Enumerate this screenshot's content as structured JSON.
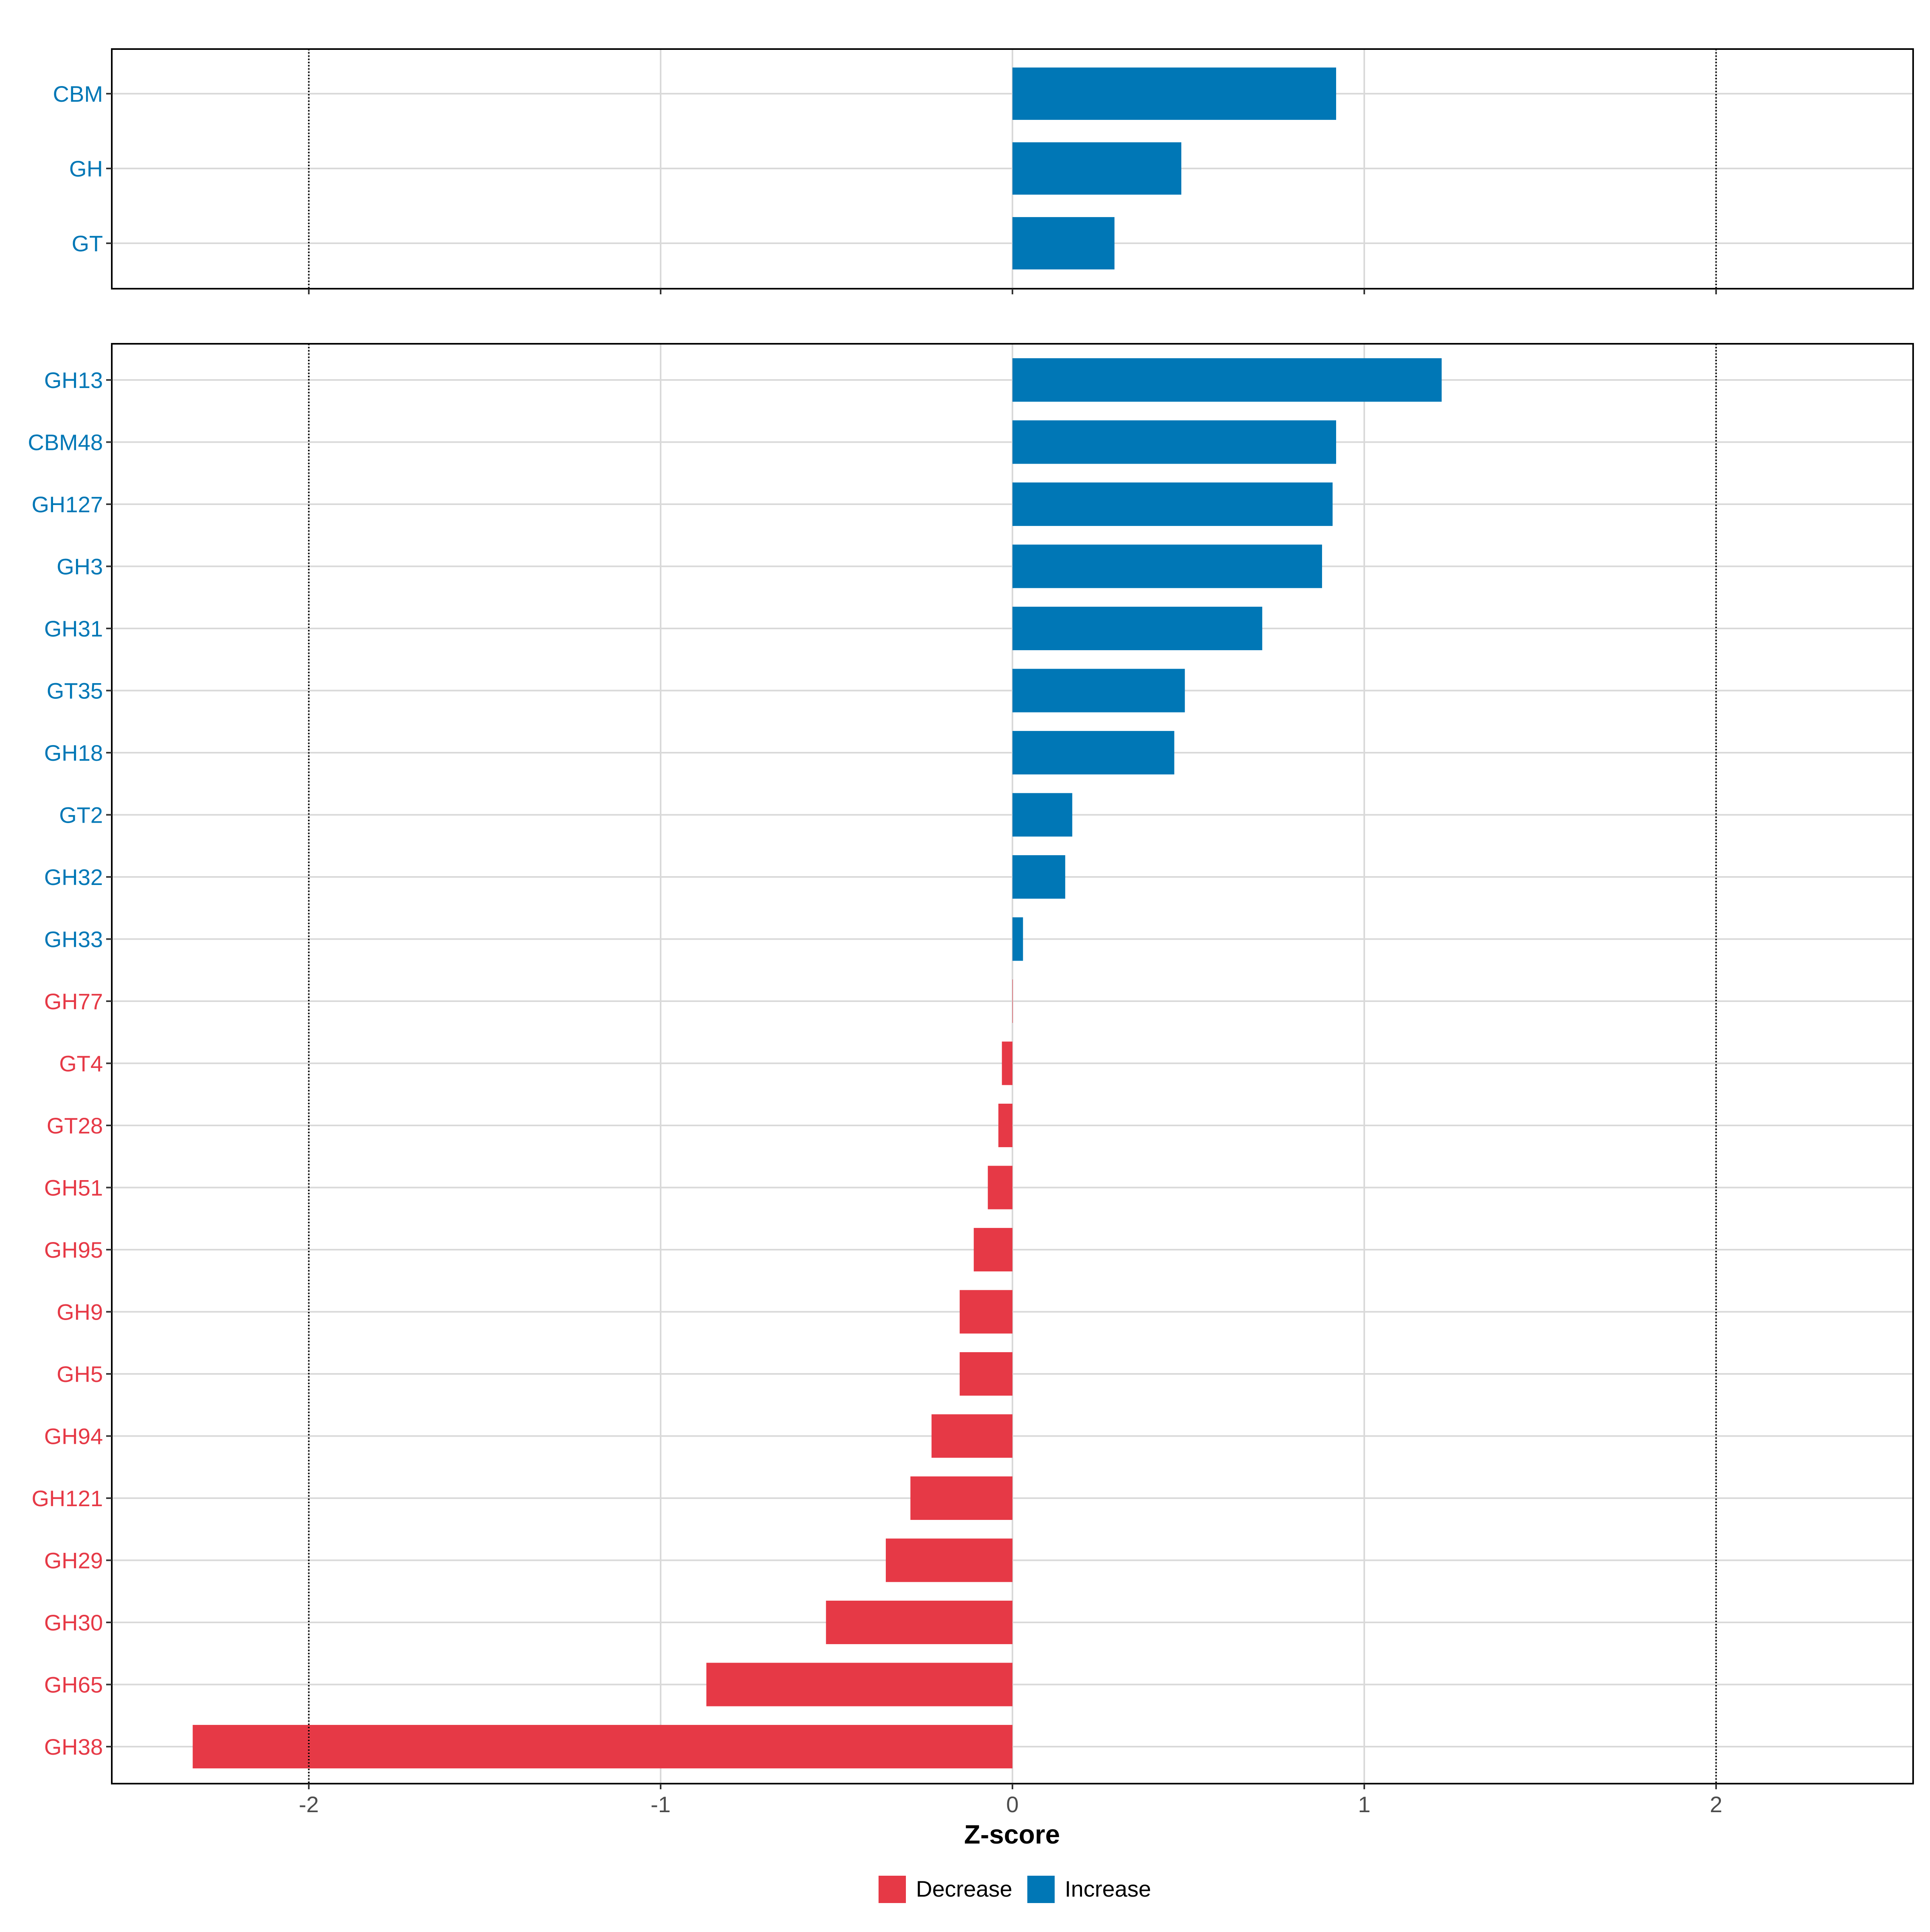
{
  "chart_data": [
    {
      "type": "bar",
      "orientation": "horizontal",
      "panel": "top",
      "categories": [
        "CBM",
        "GH",
        "GT"
      ],
      "values": [
        0.92,
        0.48,
        0.29
      ],
      "groups": [
        "Increase",
        "Increase",
        "Increase"
      ],
      "xlim": [
        -2.56,
        2.56
      ],
      "reference_lines": [
        -2,
        2
      ]
    },
    {
      "type": "bar",
      "orientation": "horizontal",
      "panel": "bottom",
      "categories": [
        "GH13",
        "CBM48",
        "GH127",
        "GH3",
        "GH31",
        "GT35",
        "GH18",
        "GT2",
        "GH32",
        "GH33",
        "GH77",
        "GT4",
        "GT28",
        "GH51",
        "GH95",
        "GH9",
        "GH5",
        "GH94",
        "GH121",
        "GH29",
        "GH30",
        "GH65",
        "GH38"
      ],
      "values": [
        1.22,
        0.92,
        0.91,
        0.88,
        0.71,
        0.49,
        0.46,
        0.17,
        0.15,
        0.03,
        0.0,
        -0.03,
        -0.04,
        -0.07,
        -0.11,
        -0.15,
        -0.15,
        -0.23,
        -0.29,
        -0.36,
        -0.53,
        -0.87,
        -2.33
      ],
      "groups": [
        "Increase",
        "Increase",
        "Increase",
        "Increase",
        "Increase",
        "Increase",
        "Increase",
        "Increase",
        "Increase",
        "Increase",
        "Decrease",
        "Decrease",
        "Decrease",
        "Decrease",
        "Decrease",
        "Decrease",
        "Decrease",
        "Decrease",
        "Decrease",
        "Decrease",
        "Decrease",
        "Decrease",
        "Decrease"
      ],
      "xlim": [
        -2.56,
        2.56
      ],
      "reference_lines": [
        -2,
        2
      ],
      "x_ticks": [
        -2,
        -1,
        0,
        1,
        2
      ],
      "x_tick_labels": [
        "-2",
        "-1",
        "0",
        "1",
        "2"
      ],
      "xlabel": "Z-score"
    }
  ],
  "legend": {
    "placement": "bottom",
    "items": [
      {
        "label": "Decrease",
        "color": "#E63946"
      },
      {
        "label": "Increase",
        "color": "#0077B6"
      }
    ]
  },
  "colors": {
    "increase": "#0077B6",
    "decrease": "#E63946",
    "grid": "#D9D9D9",
    "panel_border": "#000000",
    "reference_line": "#000000"
  }
}
